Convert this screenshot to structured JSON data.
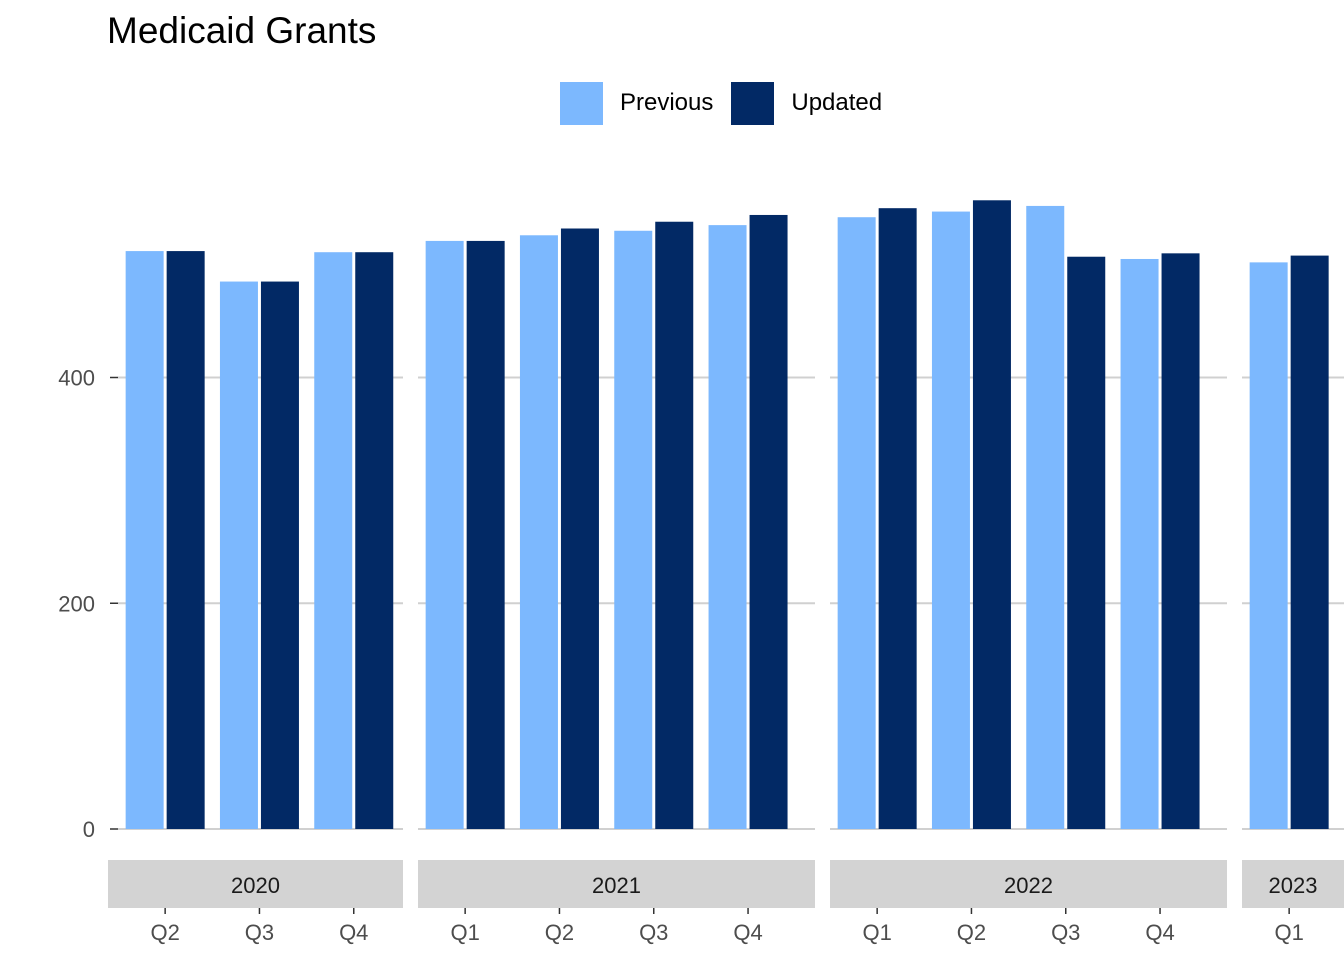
{
  "chart_data": {
    "type": "bar",
    "title": "Medicaid Grants",
    "xlabel": "",
    "ylabel": "",
    "ylim": [
      0,
      625
    ],
    "yticks": [
      0,
      200,
      400
    ],
    "grid": true,
    "legend_position": "top",
    "colors": {
      "Previous": "#7cb8fe",
      "Updated": "#022965"
    },
    "facets": [
      {
        "label": "2020",
        "categories": [
          "Q2",
          "Q3",
          "Q4"
        ]
      },
      {
        "label": "2021",
        "categories": [
          "Q1",
          "Q2",
          "Q3",
          "Q4"
        ]
      },
      {
        "label": "2022",
        "categories": [
          "Q1",
          "Q2",
          "Q3",
          "Q4"
        ]
      },
      {
        "label": "2023",
        "categories": [
          "Q1"
        ]
      }
    ],
    "series": [
      {
        "name": "Previous",
        "values": [
          512,
          485,
          511,
          521,
          526,
          530,
          535,
          542,
          547,
          552,
          505,
          502
        ]
      },
      {
        "name": "Updated",
        "values": [
          512,
          485,
          511,
          521,
          532,
          538,
          544,
          550,
          557,
          507,
          510,
          508
        ]
      }
    ]
  }
}
